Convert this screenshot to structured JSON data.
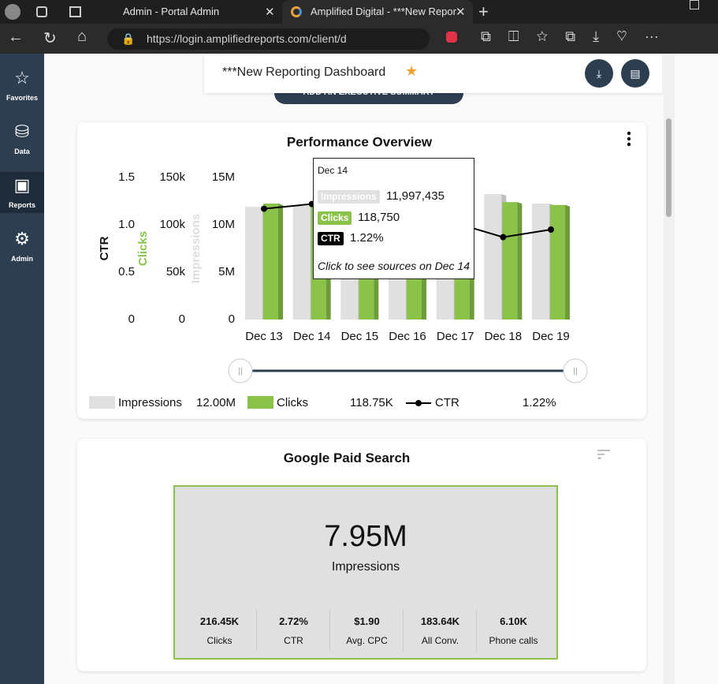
{
  "browser": {
    "tabs": [
      "Admin - Portal Admin",
      "Amplified Digital - ***New Repor"
    ],
    "url": "https://login.amplifiedreports.com/client/d"
  },
  "sidebar": {
    "items": [
      "Favorites",
      "Data",
      "Reports",
      "Admin"
    ],
    "active": 2
  },
  "header": {
    "title": "***New Reporting Dashboard",
    "button": "ADD AN EXECUTIVE SUMMARY"
  },
  "chart_data": {
    "type": "bar",
    "title": "Performance Overview",
    "categories": [
      "Dec 13",
      "Dec 14",
      "Dec 15",
      "Dec 16",
      "Dec 17",
      "Dec 18",
      "Dec 19"
    ],
    "series": [
      {
        "name": "Impressions",
        "color": "#e0e0e0",
        "axis": "y",
        "summary": "12.00M",
        "values": [
          11900000,
          11997435,
          12100000,
          11500000,
          12000000,
          13250000,
          12250000
        ]
      },
      {
        "name": "Clicks",
        "color": "#8bc34a",
        "axis": "y2",
        "summary": "118.75K",
        "values": [
          122500,
          118750,
          117000,
          114000,
          119000,
          124000,
          121000
        ]
      },
      {
        "name": "CTR",
        "color": "#000000",
        "axis": "y3",
        "type": "line",
        "summary": "1.22%",
        "values": [
          1.17,
          1.22,
          1.1,
          1.02,
          1.02,
          0.87,
          0.95
        ]
      }
    ],
    "ylabel": "Impressions",
    "ylim": [
      0,
      15000000
    ],
    "yticks": [
      0,
      {
        "value": 5000000,
        "label": "5M"
      },
      {
        "value": 10000000,
        "label": "10M"
      },
      {
        "value": 15000000,
        "label": "15M"
      }
    ],
    "y2label": "Clicks",
    "y2lim": [
      0,
      150000
    ],
    "y2ticks": [
      0,
      {
        "value": 50000,
        "label": "50k"
      },
      {
        "value": 100000,
        "label": "100k"
      },
      {
        "value": 150000,
        "label": "150k"
      }
    ],
    "y3label": "CTR",
    "y3lim": [
      0,
      1.5
    ],
    "y3ticks": [
      0,
      0.5,
      {
        "value": 1,
        "label": "1.0"
      },
      1.5
    ],
    "tooltip": {
      "title": "Dec 14",
      "items": [
        {
          "label": "Impressions",
          "value": "11,997,435"
        },
        {
          "label": "Clicks",
          "value": "118,750"
        },
        {
          "label": "CTR",
          "value": "1.22%"
        }
      ],
      "note": "Click to see sources on Dec 14"
    }
  },
  "paid_search": {
    "title": "Google Paid Search",
    "main": {
      "value": "7.95M",
      "label": "Impressions"
    },
    "metrics": [
      {
        "value": "216.45K",
        "label": "Clicks"
      },
      {
        "value": "2.72%",
        "label": "CTR"
      },
      {
        "value": "$1.90",
        "label": "Avg. CPC"
      },
      {
        "value": "183.64K",
        "label": "All Conv."
      },
      {
        "value": "6.10K",
        "label": "Phone calls"
      }
    ]
  }
}
